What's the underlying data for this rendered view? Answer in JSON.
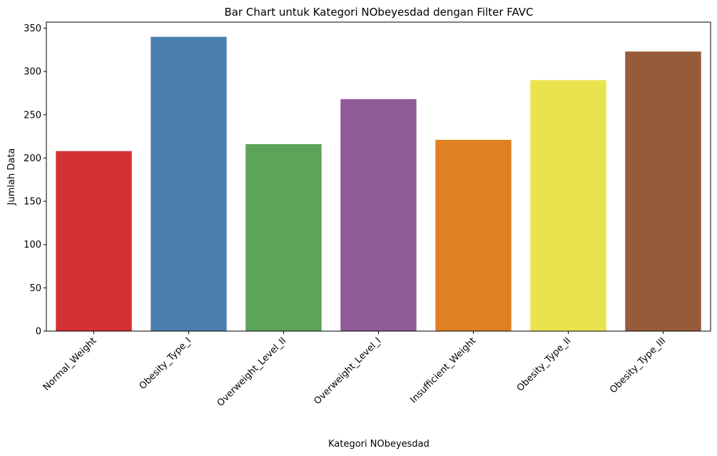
{
  "chart_data": {
    "type": "bar",
    "title": "Bar Chart untuk Kategori NObeyesdad dengan Filter FAVC",
    "xlabel": "Kategori NObeyesdad",
    "ylabel": "Jumlah Data",
    "categories": [
      "Normal_Weight",
      "Obesity_Type_I",
      "Overweight_Level_II",
      "Overweight_Level_I",
      "Insufficient_Weight",
      "Obesity_Type_II",
      "Obesity_Type_III"
    ],
    "values": [
      208,
      340,
      216,
      268,
      221,
      290,
      323
    ],
    "colors": [
      "#d33133",
      "#4a7fad",
      "#5ba459",
      "#915a99",
      "#e08020",
      "#e9e44e",
      "#965b38"
    ],
    "ylim": [
      0,
      357
    ],
    "yticks": [
      0,
      50,
      100,
      150,
      200,
      250,
      300,
      350
    ],
    "grid": false,
    "legend": "none"
  }
}
